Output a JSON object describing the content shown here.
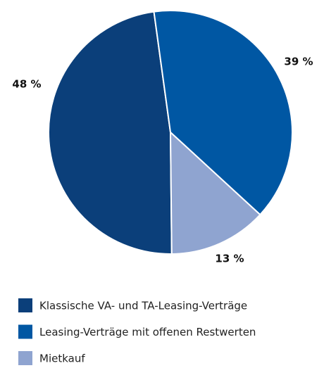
{
  "chart_data": {
    "type": "pie",
    "categories": [
      "Klassische VA- und TA-Leasing-Verträge",
      "Leasing-Verträge mit offenen Restwerten",
      "Mietkauf"
    ],
    "values": [
      48,
      39,
      13
    ],
    "value_labels": [
      "48 %",
      "39 %",
      "13 %"
    ],
    "colors": [
      "#0b3f7a",
      "#0057a3",
      "#8fa4d0"
    ]
  }
}
